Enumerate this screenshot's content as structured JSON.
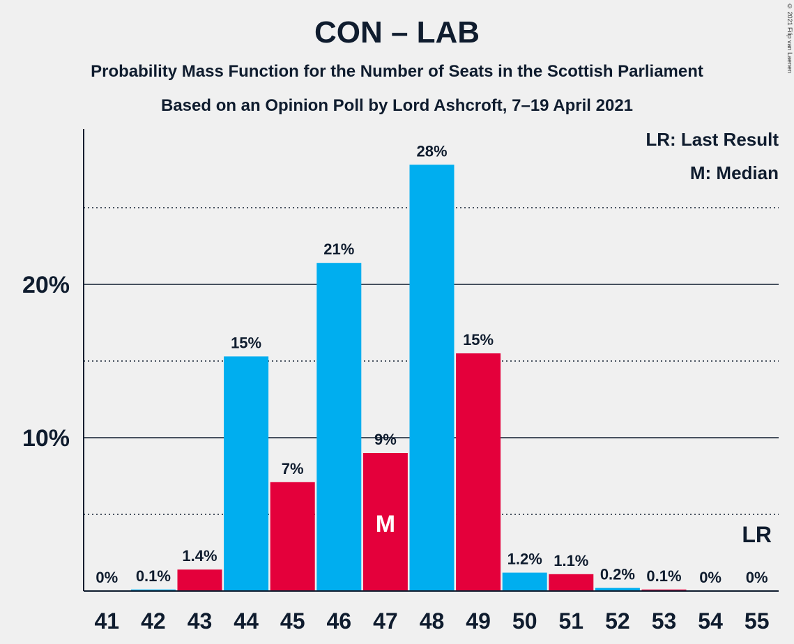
{
  "title": "CON – LAB",
  "subtitle": "Probability Mass Function for the Number of Seats in the Scottish Parliament",
  "subtitle2": "Based on an Opinion Poll by Lord Ashcroft, 7–19 April 2021",
  "copyright": "© 2021 Filip van Laenen",
  "legend": {
    "last_result": "LR: Last Result",
    "median": "M: Median"
  },
  "colors": {
    "con": "#00aeef",
    "lab": "#e4003b",
    "background": "#f0f0f0",
    "text": "#0f1c2e"
  },
  "chart_data": {
    "type": "bar",
    "categories": [
      "41",
      "42",
      "43",
      "44",
      "45",
      "46",
      "47",
      "48",
      "49",
      "50",
      "51",
      "52",
      "53",
      "54",
      "55"
    ],
    "values": [
      0,
      0.1,
      1.4,
      15.3,
      7.1,
      21.4,
      9.0,
      27.8,
      15.5,
      1.2,
      1.1,
      0.2,
      0.1,
      0,
      0
    ],
    "labels": [
      "0%",
      "0.1%",
      "1.4%",
      "15%",
      "7%",
      "21%",
      "9%",
      "28%",
      "15%",
      "1.2%",
      "1.1%",
      "0.2%",
      "0.1%",
      "0%",
      "0%"
    ],
    "bar_colors": [
      "con",
      "con",
      "lab",
      "con",
      "lab",
      "con",
      "lab",
      "con",
      "lab",
      "con",
      "lab",
      "con",
      "lab",
      "con",
      "lab"
    ],
    "ylim": [
      0,
      30
    ],
    "y_ticks": [
      10,
      20
    ],
    "y_tick_labels": [
      "10%",
      "20%"
    ],
    "minor_gridlines": [
      5,
      15,
      25
    ],
    "median": "47",
    "median_marker": "M",
    "last_result": "55",
    "last_result_marker": "LR",
    "legend_position": "top-right",
    "grid": true
  }
}
